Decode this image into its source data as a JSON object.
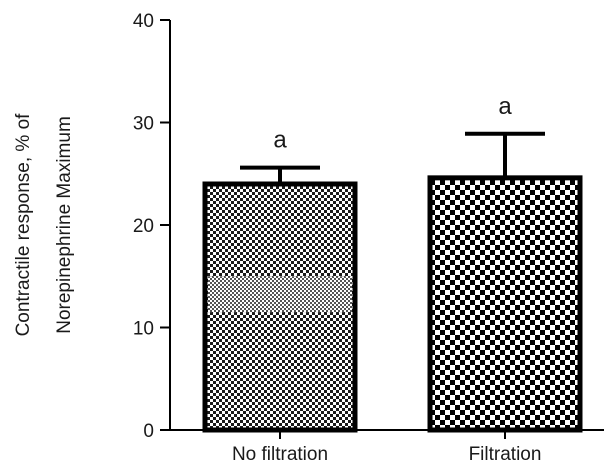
{
  "chart_data": {
    "type": "bar",
    "categories": [
      "No filtration",
      "Filtration"
    ],
    "values": [
      24.0,
      24.6
    ],
    "errors": [
      1.6,
      4.3
    ],
    "annotations": [
      "a",
      "a"
    ],
    "ylabel_lines": [
      "Contractile response, % of",
      "Norepinephrine Maximum"
    ],
    "ylim": [
      0,
      40
    ],
    "yticks": [
      "0",
      "10",
      "20",
      "30",
      "40"
    ],
    "grid": false,
    "legend": "none",
    "bar_fill": "checkered",
    "bar_edge_color": "#000000"
  }
}
